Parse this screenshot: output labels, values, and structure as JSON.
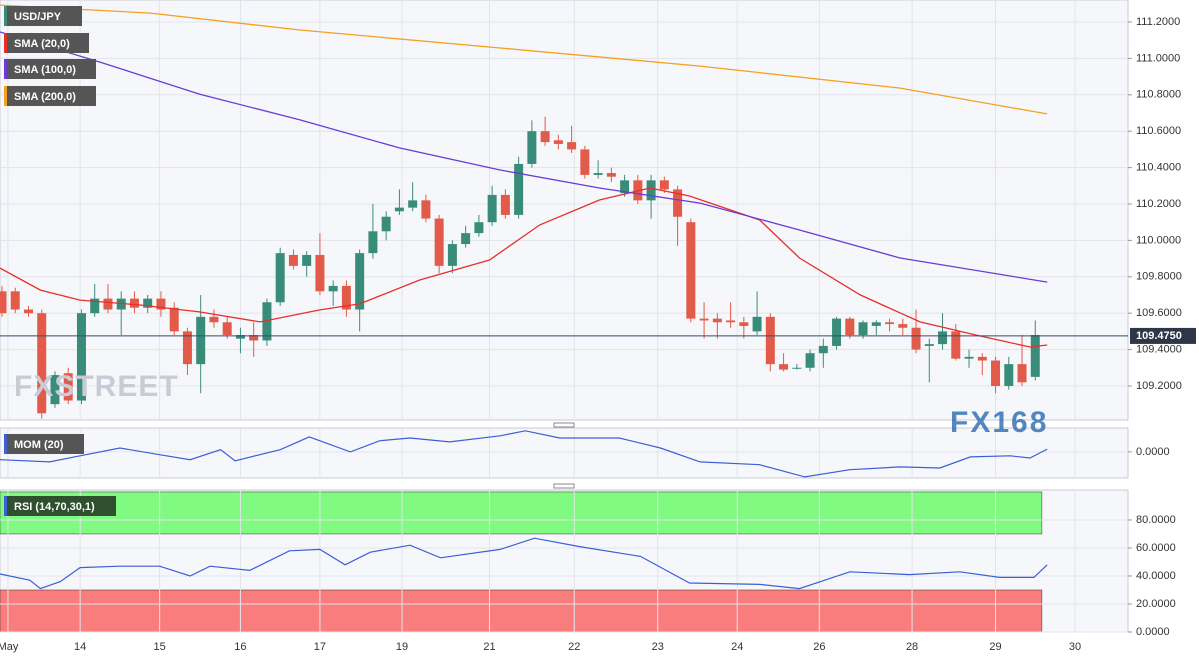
{
  "chart_data": [
    {
      "type": "candlestick",
      "title": "USD/JPY",
      "up_color": "#3a8c7a",
      "down_color": "#e25a4a",
      "candles": [
        [
          109.72,
          109.75,
          109.58,
          109.6
        ],
        [
          109.72,
          109.74,
          109.6,
          109.62
        ],
        [
          109.62,
          109.64,
          109.58,
          109.6
        ],
        [
          109.6,
          109.62,
          109.02,
          109.05
        ],
        [
          109.1,
          109.28,
          109.08,
          109.26
        ],
        [
          109.27,
          109.3,
          109.1,
          109.12
        ],
        [
          109.12,
          109.62,
          109.1,
          109.6
        ],
        [
          109.6,
          109.76,
          109.58,
          109.68
        ],
        [
          109.68,
          109.76,
          109.6,
          109.62
        ],
        [
          109.62,
          109.72,
          109.48,
          109.68
        ],
        [
          109.68,
          109.72,
          109.6,
          109.63
        ],
        [
          109.63,
          109.7,
          109.6,
          109.68
        ],
        [
          109.68,
          109.72,
          109.58,
          109.62
        ],
        [
          109.63,
          109.66,
          109.48,
          109.5
        ],
        [
          109.5,
          109.52,
          109.26,
          109.32
        ],
        [
          109.32,
          109.7,
          109.16,
          109.58
        ],
        [
          109.58,
          109.62,
          109.52,
          109.55
        ],
        [
          109.55,
          109.58,
          109.46,
          109.48
        ],
        [
          109.46,
          109.52,
          109.38,
          109.48
        ],
        [
          109.48,
          109.55,
          109.36,
          109.45
        ],
        [
          109.45,
          109.68,
          109.42,
          109.66
        ],
        [
          109.66,
          109.96,
          109.64,
          109.93
        ],
        [
          109.92,
          109.95,
          109.84,
          109.86
        ],
        [
          109.86,
          109.94,
          109.8,
          109.92
        ],
        [
          109.92,
          110.04,
          109.7,
          109.72
        ],
        [
          109.72,
          109.78,
          109.64,
          109.75
        ],
        [
          109.75,
          109.78,
          109.58,
          109.62
        ],
        [
          109.62,
          109.95,
          109.5,
          109.93
        ],
        [
          109.93,
          110.2,
          109.9,
          110.05
        ],
        [
          110.05,
          110.16,
          110.0,
          110.13
        ],
        [
          110.16,
          110.28,
          110.14,
          110.18
        ],
        [
          110.18,
          110.32,
          110.16,
          110.22
        ],
        [
          110.22,
          110.25,
          110.1,
          110.12
        ],
        [
          110.12,
          110.14,
          109.82,
          109.86
        ],
        [
          109.86,
          110.0,
          109.82,
          109.98
        ],
        [
          109.98,
          110.08,
          109.96,
          110.04
        ],
        [
          110.04,
          110.14,
          110.02,
          110.1
        ],
        [
          110.1,
          110.3,
          110.08,
          110.25
        ],
        [
          110.25,
          110.28,
          110.12,
          110.14
        ],
        [
          110.14,
          110.46,
          110.12,
          110.42
        ],
        [
          110.42,
          110.66,
          110.4,
          110.6
        ],
        [
          110.6,
          110.68,
          110.52,
          110.54
        ],
        [
          110.55,
          110.58,
          110.5,
          110.53
        ],
        [
          110.54,
          110.63,
          110.48,
          110.5
        ],
        [
          110.5,
          110.52,
          110.34,
          110.36
        ],
        [
          110.36,
          110.44,
          110.34,
          110.37
        ],
        [
          110.37,
          110.4,
          110.32,
          110.35
        ],
        [
          110.26,
          110.36,
          110.24,
          110.33
        ],
        [
          110.33,
          110.36,
          110.2,
          110.22
        ],
        [
          110.22,
          110.36,
          110.12,
          110.33
        ],
        [
          110.33,
          110.35,
          110.26,
          110.28
        ],
        [
          110.28,
          110.3,
          109.97,
          110.13
        ],
        [
          110.1,
          110.12,
          109.55,
          109.57
        ],
        [
          109.57,
          109.66,
          109.46,
          109.56
        ],
        [
          109.57,
          109.6,
          109.46,
          109.55
        ],
        [
          109.56,
          109.66,
          109.52,
          109.55
        ],
        [
          109.55,
          109.58,
          109.46,
          109.53
        ],
        [
          109.5,
          109.72,
          109.48,
          109.58
        ],
        [
          109.58,
          109.6,
          109.28,
          109.32
        ],
        [
          109.32,
          109.38,
          109.28,
          109.29
        ],
        [
          109.3,
          109.32,
          109.29,
          109.3
        ],
        [
          109.3,
          109.4,
          109.28,
          109.38
        ],
        [
          109.38,
          109.46,
          109.3,
          109.42
        ],
        [
          109.42,
          109.58,
          109.4,
          109.57
        ],
        [
          109.57,
          109.58,
          109.46,
          109.48
        ],
        [
          109.48,
          109.56,
          109.46,
          109.55
        ],
        [
          109.53,
          109.56,
          109.48,
          109.55
        ],
        [
          109.55,
          109.57,
          109.5,
          109.54
        ],
        [
          109.54,
          109.57,
          109.48,
          109.52
        ],
        [
          109.52,
          109.62,
          109.38,
          109.4
        ],
        [
          109.42,
          109.46,
          109.22,
          109.43
        ],
        [
          109.43,
          109.6,
          109.4,
          109.5
        ],
        [
          109.5,
          109.54,
          109.34,
          109.35
        ],
        [
          109.35,
          109.4,
          109.3,
          109.36
        ],
        [
          109.36,
          109.38,
          109.26,
          109.34
        ],
        [
          109.34,
          109.36,
          109.16,
          109.2
        ],
        [
          109.2,
          109.36,
          109.18,
          109.32
        ],
        [
          109.32,
          109.48,
          109.2,
          109.22
        ],
        [
          109.25,
          109.56,
          109.23,
          109.48
        ]
      ],
      "series": [
        {
          "name": "SMA (20,0)",
          "color": "#e5302a",
          "x": [
            -0.15,
            2.9,
            5.9,
            10.4,
            14.9,
            19.5,
            24,
            27,
            31.5,
            36.8,
            40.6,
            45.1,
            48.9,
            51.9,
            57.2,
            60.2,
            64.8,
            69.3,
            73.8,
            77.6,
            78.9
          ],
          "values": [
            109.848,
            109.727,
            109.672,
            109.645,
            109.607,
            109.552,
            109.618,
            109.651,
            109.782,
            109.892,
            110.085,
            110.222,
            110.288,
            110.244,
            110.112,
            109.903,
            109.7,
            109.552,
            109.475,
            109.414,
            109.425
          ]
        },
        {
          "name": "SMA (100,0)",
          "color": "#6a3bd6",
          "x": [
            -0.15,
            7.4,
            14.9,
            22.5,
            30,
            37.6,
            45.1,
            52.7,
            60.2,
            67.8,
            78.9
          ],
          "values": [
            111.145,
            110.98,
            110.804,
            110.662,
            110.508,
            110.387,
            110.288,
            110.205,
            110.057,
            109.903,
            109.771
          ]
        },
        {
          "name": "SMA (200,0)",
          "color": "#f5a020",
          "x": [
            -0.15,
            11.2,
            22.5,
            37.6,
            52.7,
            67.8,
            78.9
          ],
          "values": [
            111.293,
            111.249,
            111.156,
            111.057,
            110.958,
            110.837,
            110.695
          ]
        }
      ],
      "last_price": {
        "value": 109.475,
        "label": "109.4750"
      },
      "ylim": [
        109.013,
        111.321
      ],
      "yticks": [
        {
          "value": 109.2,
          "label": "109.2000"
        },
        {
          "value": 109.4,
          "label": "109.4000"
        },
        {
          "value": 109.6,
          "label": "109.6000"
        },
        {
          "value": 109.8,
          "label": "109.8000"
        },
        {
          "value": 110.0,
          "label": "110.0000"
        },
        {
          "value": 110.2,
          "label": "110.2000"
        },
        {
          "value": 110.4,
          "label": "110.4000"
        },
        {
          "value": 110.6,
          "label": "110.6000"
        },
        {
          "value": 110.8,
          "label": "110.8000"
        },
        {
          "value": 111.0,
          "label": "111.0000"
        },
        {
          "value": 111.2,
          "label": "111.2000"
        }
      ],
      "xlim": [
        -0.15,
        85.0
      ],
      "xticks": [
        {
          "value": 0.45,
          "label": "May"
        },
        {
          "value": 5.9,
          "label": "14"
        },
        {
          "value": 11.9,
          "label": "15"
        },
        {
          "value": 18,
          "label": "16"
        },
        {
          "value": 24,
          "label": "17"
        },
        {
          "value": 30.2,
          "label": "19"
        },
        {
          "value": 36.8,
          "label": "21"
        },
        {
          "value": 43.2,
          "label": "22"
        },
        {
          "value": 49.5,
          "label": "23"
        },
        {
          "value": 55.5,
          "label": "24"
        },
        {
          "value": 61.7,
          "label": "26"
        },
        {
          "value": 68.7,
          "label": "28"
        },
        {
          "value": 75,
          "label": "29"
        },
        {
          "value": 81,
          "label": "30"
        }
      ],
      "watermarks": [
        "FXSTREET",
        "FX168"
      ]
    },
    {
      "type": "line",
      "title": "MOM (20)",
      "color": "#3a5fd6",
      "x": [
        -0.15,
        3.6,
        5.9,
        8.9,
        11.9,
        14.2,
        16.5,
        17.6,
        21,
        23.2,
        26.3,
        28.5,
        30.8,
        33.8,
        37.6,
        39.5,
        42.1,
        46.6,
        49.7,
        52.7,
        57.2,
        60.6,
        64,
        67.8,
        70.8,
        73.1,
        76.1,
        77.6,
        78.9
      ],
      "values": [
        -0.14,
        -0.18,
        -0.07,
        0.07,
        -0.05,
        -0.14,
        0.04,
        -0.16,
        0.04,
        0.27,
        0,
        0.2,
        0.25,
        0.18,
        0.29,
        0.38,
        0.25,
        0.25,
        0.07,
        -0.18,
        -0.23,
        -0.45,
        -0.32,
        -0.27,
        -0.29,
        -0.09,
        -0.07,
        -0.11,
        0.05
      ],
      "ylim": [
        -0.47,
        0.43
      ],
      "yticks": [
        {
          "value": 0,
          "label": "0.0000"
        }
      ]
    },
    {
      "type": "line",
      "title": "RSI (14,70,30,1)",
      "color": "#3a5fd6",
      "x": [
        -0.15,
        2.1,
        2.9,
        4.4,
        5.9,
        8.9,
        11.9,
        14.2,
        15.7,
        18.7,
        21.7,
        24,
        25.9,
        27.8,
        30.8,
        33.1,
        37.6,
        40.2,
        43.6,
        48.2,
        51.9,
        57.2,
        60.2,
        64,
        68.5,
        72.3,
        75.3,
        77.9,
        78.9
      ],
      "values": [
        41.4,
        37,
        31,
        36,
        46,
        47,
        47,
        40,
        47,
        44,
        58,
        59,
        48,
        57,
        62,
        53,
        59,
        67,
        61,
        54,
        35,
        34,
        31,
        43,
        41,
        43,
        39,
        39,
        48
      ],
      "bands": [
        {
          "from": 70,
          "to": 100,
          "color": "#80fa80"
        },
        {
          "from": 0,
          "to": 30,
          "color": "#fa7d7d"
        }
      ],
      "ylim": [
        0,
        101.4
      ],
      "yticks": [
        {
          "value": 0,
          "label": "0.0000"
        },
        {
          "value": 20,
          "label": "20.0000"
        },
        {
          "value": 40,
          "label": "40.0000"
        },
        {
          "value": 60,
          "label": "60.0000"
        },
        {
          "value": 80,
          "label": "80.0000"
        }
      ]
    }
  ]
}
